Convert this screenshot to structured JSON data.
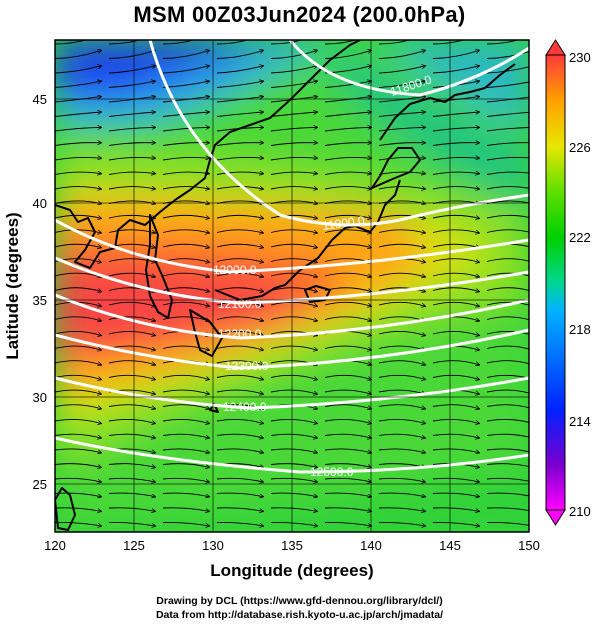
{
  "title": "MSM 00Z03Jun2024 (200.0hPa)",
  "axes": {
    "x_label": "Longitude (degrees)",
    "y_label": "Latitude  (degrees)",
    "x_ticks": [
      "120",
      "125",
      "130",
      "135",
      "140",
      "145",
      "150"
    ],
    "y_ticks": [
      "25",
      "30",
      "35",
      "40",
      "45"
    ]
  },
  "colorbar": {
    "ticks": [
      "230",
      "226",
      "222",
      "218",
      "214",
      "210"
    ],
    "colors": [
      "#ff00ff",
      "#7a00d0",
      "#0022ff",
      "#00b4ff",
      "#00d690",
      "#00d000",
      "#5fe000",
      "#e8e600",
      "#ffa000",
      "#ff3a3a"
    ]
  },
  "contour_labels": [
    "11800.0",
    "11900.0",
    "12000.0",
    "12100.0",
    "12200.0",
    "12300.0",
    "12400.0",
    "12500.0"
  ],
  "credits": {
    "line1": "Drawing by DCL (https://www.gfd-dennou.org/library/dcl/)",
    "line2": "Data from http://database.rish.kyoto-u.ac.jp/arch/jmadata/"
  }
}
